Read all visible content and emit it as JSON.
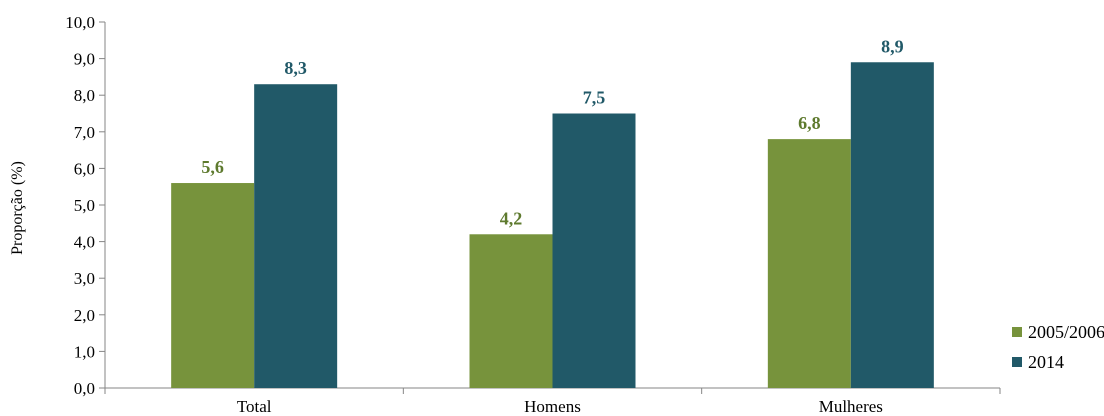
{
  "chart_data": {
    "type": "bar",
    "categories": [
      "Total",
      "Homens",
      "Mulheres"
    ],
    "series": [
      {
        "name": "2005/2006",
        "values": [
          5.6,
          4.2,
          6.8
        ],
        "labels": [
          "5,6",
          "4,2",
          "6,8"
        ],
        "color": "#77933C",
        "label_color": "#5E7A2E"
      },
      {
        "name": "2014",
        "values": [
          8.3,
          7.5,
          8.9
        ],
        "labels": [
          "8,3",
          "7,5",
          "8,9"
        ],
        "color": "#215968",
        "label_color": "#215968"
      }
    ],
    "ylabel": "Proporção (%)",
    "ylim": [
      0,
      10
    ],
    "yticks": [
      "0,0",
      "1,0",
      "2,0",
      "3,0",
      "4,0",
      "5,0",
      "6,0",
      "7,0",
      "8,0",
      "9,0",
      "10,0"
    ],
    "grid": false,
    "legend_position": "bottom-right"
  }
}
